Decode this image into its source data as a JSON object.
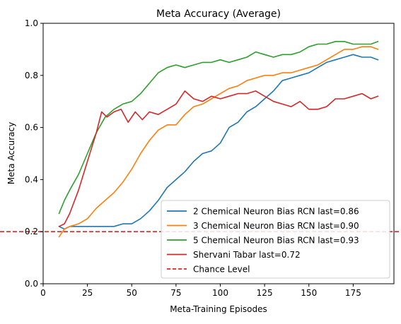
{
  "chart_data": {
    "type": "line",
    "title": "Meta Accuracy (Average)",
    "xlabel": "Meta-Training Episodes",
    "ylabel": "Meta Accuracy",
    "xlim": [
      0,
      198
    ],
    "ylim": [
      0.0,
      1.0
    ],
    "xticks": [
      0,
      25,
      50,
      75,
      100,
      125,
      150,
      175
    ],
    "yticks": [
      0.0,
      0.2,
      0.4,
      0.6,
      0.8,
      1.0
    ],
    "xtick_labels": [
      "0",
      "25",
      "50",
      "75",
      "100",
      "125",
      "150",
      "175"
    ],
    "ytick_labels": [
      "0.0",
      "0.2",
      "0.4",
      "0.6",
      "0.8",
      "1.0"
    ],
    "grid": false,
    "legend_position": "lower-right",
    "series": [
      {
        "name": "2 Chemical Neuron Bias RCN last=0.86",
        "color": "#1f77b4",
        "x": [
          9,
          12,
          15,
          20,
          25,
          30,
          35,
          40,
          45,
          50,
          55,
          60,
          65,
          70,
          75,
          80,
          85,
          90,
          95,
          100,
          105,
          110,
          115,
          120,
          125,
          130,
          135,
          140,
          145,
          150,
          155,
          160,
          165,
          170,
          175,
          180,
          185,
          189
        ],
        "y": [
          0.22,
          0.21,
          0.22,
          0.22,
          0.22,
          0.22,
          0.22,
          0.22,
          0.23,
          0.23,
          0.25,
          0.28,
          0.32,
          0.37,
          0.4,
          0.43,
          0.47,
          0.5,
          0.51,
          0.54,
          0.6,
          0.62,
          0.66,
          0.68,
          0.71,
          0.74,
          0.78,
          0.79,
          0.8,
          0.81,
          0.83,
          0.85,
          0.86,
          0.87,
          0.88,
          0.87,
          0.87,
          0.86
        ]
      },
      {
        "name": "3 Chemical Neuron Bias RCN last=0.90",
        "color": "#ff7f0e",
        "x": [
          9,
          12,
          15,
          20,
          25,
          30,
          35,
          40,
          45,
          50,
          55,
          60,
          65,
          70,
          75,
          80,
          85,
          90,
          95,
          100,
          105,
          110,
          115,
          120,
          125,
          130,
          135,
          140,
          145,
          150,
          155,
          160,
          165,
          170,
          175,
          180,
          185,
          189
        ],
        "y": [
          0.18,
          0.21,
          0.22,
          0.23,
          0.25,
          0.29,
          0.32,
          0.35,
          0.39,
          0.44,
          0.5,
          0.55,
          0.59,
          0.61,
          0.61,
          0.65,
          0.68,
          0.69,
          0.71,
          0.73,
          0.75,
          0.76,
          0.78,
          0.79,
          0.8,
          0.8,
          0.81,
          0.81,
          0.82,
          0.83,
          0.84,
          0.86,
          0.88,
          0.9,
          0.9,
          0.91,
          0.91,
          0.9
        ]
      },
      {
        "name": "5 Chemical Neuron Bias RCN last=0.93",
        "color": "#2ca02c",
        "x": [
          9,
          12,
          15,
          20,
          25,
          30,
          35,
          40,
          45,
          50,
          55,
          60,
          65,
          70,
          75,
          80,
          85,
          90,
          95,
          100,
          105,
          110,
          115,
          120,
          125,
          130,
          135,
          140,
          145,
          150,
          155,
          160,
          165,
          170,
          175,
          180,
          185,
          189
        ],
        "y": [
          0.27,
          0.32,
          0.36,
          0.42,
          0.5,
          0.58,
          0.64,
          0.67,
          0.69,
          0.7,
          0.73,
          0.77,
          0.81,
          0.83,
          0.84,
          0.83,
          0.84,
          0.85,
          0.85,
          0.86,
          0.85,
          0.86,
          0.87,
          0.89,
          0.88,
          0.87,
          0.88,
          0.88,
          0.89,
          0.91,
          0.92,
          0.92,
          0.93,
          0.93,
          0.92,
          0.92,
          0.92,
          0.93
        ]
      },
      {
        "name": "Shervani Tabar last=0.72",
        "color": "#d62728",
        "x": [
          9,
          12,
          15,
          20,
          25,
          30,
          33,
          36,
          40,
          44,
          48,
          52,
          56,
          60,
          65,
          70,
          75,
          80,
          85,
          90,
          95,
          100,
          105,
          110,
          115,
          120,
          125,
          130,
          135,
          140,
          145,
          150,
          155,
          160,
          165,
          170,
          175,
          180,
          185,
          189
        ],
        "y": [
          0.22,
          0.23,
          0.27,
          0.36,
          0.47,
          0.58,
          0.66,
          0.64,
          0.66,
          0.67,
          0.62,
          0.66,
          0.63,
          0.66,
          0.65,
          0.67,
          0.69,
          0.74,
          0.71,
          0.7,
          0.72,
          0.71,
          0.72,
          0.73,
          0.73,
          0.74,
          0.72,
          0.7,
          0.69,
          0.68,
          0.7,
          0.67,
          0.67,
          0.68,
          0.71,
          0.71,
          0.72,
          0.73,
          0.71,
          0.72
        ]
      }
    ],
    "reference_lines": [
      {
        "name": "Chance Level",
        "y": 0.2,
        "color": "#d62728",
        "style": "dashed"
      }
    ]
  }
}
